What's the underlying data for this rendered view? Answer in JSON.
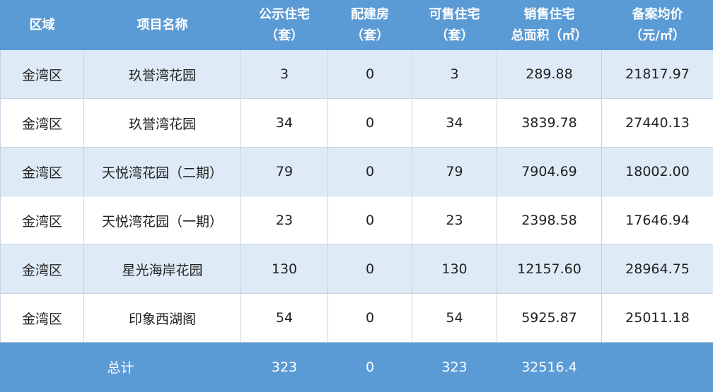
{
  "colors": {
    "header_bg": "#5b9bd5",
    "row_alt_bg": "#deebf7",
    "row_bg": "#ffffff"
  },
  "headers": [
    {
      "line1": "区域",
      "line2": ""
    },
    {
      "line1": "项目名称",
      "line2": ""
    },
    {
      "line1": "公示住宅",
      "line2": "（套）"
    },
    {
      "line1": "配建房",
      "line2": "（套）"
    },
    {
      "line1": "可售住宅",
      "line2": "（套）"
    },
    {
      "line1": "销售住宅",
      "line2": "总面积（㎡）"
    },
    {
      "line1": "备案均价",
      "line2": "（元/㎡）"
    }
  ],
  "rows": [
    [
      "金湾区",
      "玖誉湾花园",
      "3",
      "0",
      "3",
      "289.88",
      "21817.97"
    ],
    [
      "金湾区",
      "玖誉湾花园",
      "34",
      "0",
      "34",
      "3839.78",
      "27440.13"
    ],
    [
      "金湾区",
      "天悦湾花园（二期）",
      "79",
      "0",
      "79",
      "7904.69",
      "18002.00"
    ],
    [
      "金湾区",
      "天悦湾花园（一期）",
      "23",
      "0",
      "23",
      "2398.58",
      "17646.94"
    ],
    [
      "金湾区",
      "星光海岸花园",
      "130",
      "0",
      "130",
      "12157.60",
      "28964.75"
    ],
    [
      "金湾区",
      "印象西湖阁",
      "54",
      "0",
      "54",
      "5925.87",
      "25011.18"
    ]
  ],
  "total": {
    "label": "总计",
    "public": "323",
    "supporting": "0",
    "saleable": "323",
    "area": "32516.4",
    "price": ""
  }
}
